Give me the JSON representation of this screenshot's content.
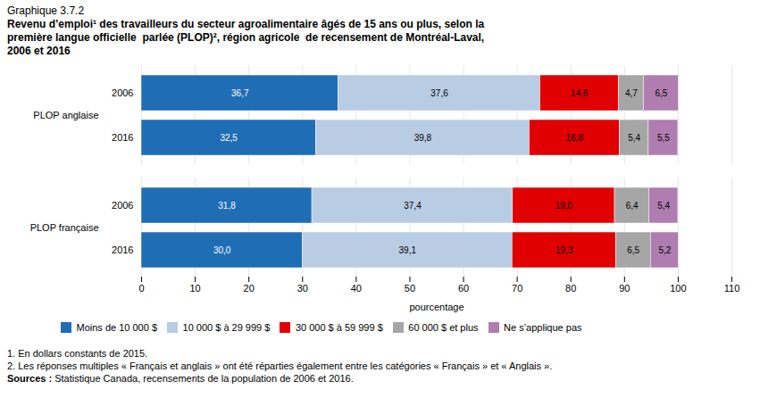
{
  "chart_data": {
    "type": "bar",
    "orientation": "horizontal",
    "stacked": true,
    "data_labels": true,
    "grid": true,
    "legend": "bottom",
    "subtitle": "Graphique 3.7.2",
    "title": [
      "Revenu d’emploi¹ des travailleurs du secteur agroalimentaire âgés de 15 ans ou plus, selon la",
      "première langue officielle  parlée (PLOP)², région agricole  de recensement de Montréal-Laval,",
      "2006 et 2016"
    ],
    "categories": [
      "2006",
      "2016",
      "2006",
      "2016"
    ],
    "groups": [
      "PLOP anglaise",
      "PLOP anglaise",
      "PLOP française",
      "PLOP française"
    ],
    "series": [
      {
        "name": "Moins de 10 000 $",
        "color": "#1f6db5",
        "values": [
          36.7,
          32.5,
          31.8,
          30.0
        ],
        "value_labels": [
          "36,7",
          "32,5",
          "31,8",
          "30,0"
        ]
      },
      {
        "name": "10 000 $ à 29 999 $",
        "color": "#b8cce4",
        "values": [
          37.6,
          39.8,
          37.4,
          39.1
        ],
        "value_labels": [
          "37,6",
          "39,8",
          "37,4",
          "39,1"
        ]
      },
      {
        "name": "30 000 $ à 59 999 $",
        "color": "#e00000",
        "values": [
          14.6,
          16.8,
          19.0,
          19.3
        ],
        "value_labels": [
          "14,6",
          "16,8",
          "19,0",
          "19,3"
        ]
      },
      {
        "name": "60 000 $ et plus",
        "color": "#a6a6a6",
        "values": [
          4.7,
          5.4,
          6.4,
          6.5
        ],
        "value_labels": [
          "4,7",
          "5,4",
          "6,4",
          "6,5"
        ]
      },
      {
        "name": "Ne s’applique pas",
        "color": "#b07db0",
        "values": [
          6.5,
          5.5,
          5.4,
          5.2
        ],
        "value_labels": [
          "6,5",
          "5,5",
          "5,4",
          "5,2"
        ]
      }
    ],
    "xlabel": "pourcentage",
    "xlim": [
      0,
      110
    ],
    "xticks": [
      0,
      10,
      20,
      30,
      40,
      50,
      60,
      70,
      80,
      90,
      100,
      110
    ],
    "footnotes": [
      "1. En dollars constants de 2015.",
      "2. Les réponses multiples « Français et anglais » ont été réparties également entre les catégories « Français » et « Anglais »."
    ],
    "source": {
      "label": "Sources : ",
      "text": "Statistique Canada, recensements de la population de 2006 et 2016."
    }
  }
}
